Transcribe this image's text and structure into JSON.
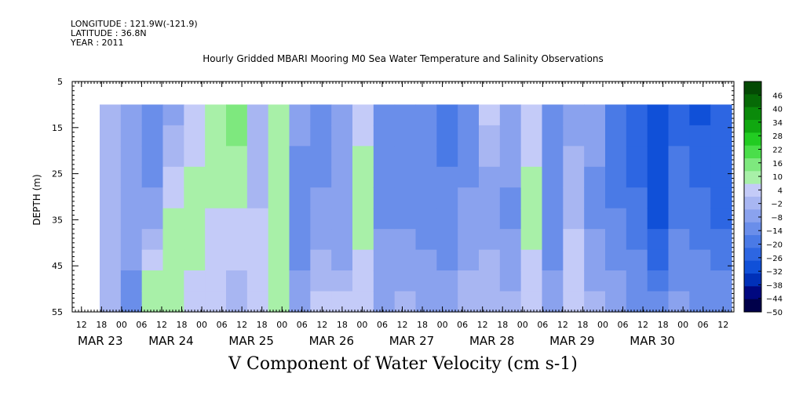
{
  "header": {
    "longitude": "LONGITUDE : 121.9W(-121.9)",
    "latitude": "LATITUDE : 36.8N",
    "year": "YEAR : 2011"
  },
  "chart_data": {
    "type": "heatmap",
    "title": "Hourly Gridded MBARI Mooring M0 Sea Water Temperature and Salinity Observations",
    "ylabel": "DEPTH (m)",
    "xlabel": "V Component of Water Velocity (cm s-1)",
    "ylim": [
      55,
      5
    ],
    "y_ticks": [
      5,
      15,
      25,
      35,
      45,
      55
    ],
    "data_depth_range": [
      10,
      55
    ],
    "x_hour_ticks": [
      "12",
      "18",
      "00",
      "06",
      "12",
      "18",
      "00",
      "06",
      "12",
      "18",
      "00",
      "06",
      "12",
      "18",
      "00",
      "06",
      "12",
      "18",
      "00",
      "06",
      "12",
      "18",
      "00",
      "06",
      "12",
      "18",
      "00",
      "06",
      "12",
      "18",
      "00",
      "06",
      "12"
    ],
    "x_date_labels": [
      "MAR 23",
      "MAR 24",
      "MAR 25",
      "MAR 26",
      "MAR 27",
      "MAR 28",
      "MAR 29",
      "MAR 30"
    ],
    "colorbar": {
      "ticks": [
        46,
        40,
        34,
        28,
        22,
        16,
        10,
        4,
        -2,
        -8,
        -14,
        -20,
        -26,
        -32,
        -38,
        -44,
        -50
      ],
      "range": [
        -50,
        52
      ],
      "colors": [
        "#00004a",
        "#000880",
        "#0030b8",
        "#1050d8",
        "#2d66e2",
        "#4a7ae6",
        "#6a8eea",
        "#8aa2ee",
        "#a8b6f2",
        "#c4cbf8",
        "#a8f0a8",
        "#7ee87e",
        "#4ade4a",
        "#22cc22",
        "#10a810",
        "#0a8a0a",
        "#066a06",
        "#044a04"
      ]
    },
    "series": [
      {
        "values": [
          [
            -4,
            -4,
            -4,
            -3,
            -3,
            -3,
            -2,
            -2,
            -2,
            -2
          ],
          [
            -8,
            -8,
            -9,
            -9,
            -9,
            -10,
            -10,
            -10,
            -11,
            -11
          ],
          [
            -12,
            -12,
            -12,
            -11,
            -10,
            -6,
            0,
            4,
            8,
            10
          ],
          [
            -6,
            -4,
            -2,
            1,
            4,
            8,
            10,
            12,
            12,
            12
          ],
          [
            2,
            4,
            6,
            8,
            10,
            10,
            10,
            8,
            6,
            4
          ],
          [
            10,
            10,
            10,
            9,
            8,
            6,
            4,
            3,
            2,
            2
          ],
          [
            14,
            14,
            12,
            10,
            8,
            6,
            4,
            2,
            0,
            -1
          ],
          [
            -4,
            -3,
            -2,
            -1,
            0,
            1,
            2,
            4,
            6,
            6
          ],
          [
            10,
            12,
            12,
            12,
            12,
            12,
            11,
            10,
            10,
            10
          ],
          [
            -10,
            -10,
            -11,
            -11,
            -11,
            -12,
            -12,
            -11,
            -10,
            -10
          ],
          [
            -12,
            -12,
            -12,
            -11,
            -10,
            -8,
            -6,
            -4,
            -2,
            2
          ],
          [
            -8,
            -8,
            -9,
            -10,
            -10,
            -10,
            -9,
            -8,
            -4,
            2
          ],
          [
            4,
            6,
            8,
            8,
            8,
            8,
            7,
            6,
            4,
            2
          ],
          [
            -14,
            -14,
            -13,
            -12,
            -12,
            -11,
            -10,
            -9,
            -8,
            -6
          ],
          [
            -14,
            -14,
            -14,
            -14,
            -14,
            -12,
            -10,
            -8,
            -6,
            -4
          ],
          [
            -16,
            -16,
            -16,
            -15,
            -14,
            -14,
            -12,
            -10,
            -8,
            -6
          ],
          [
            -18,
            -18,
            -17,
            -16,
            -16,
            -15,
            -14,
            -12,
            -10,
            -10
          ],
          [
            -16,
            -14,
            -12,
            -12,
            -10,
            -10,
            -8,
            -6,
            -4,
            -2
          ],
          [
            2,
            -2,
            -4,
            -6,
            -8,
            -8,
            -6,
            -4,
            -2,
            0
          ],
          [
            -8,
            -8,
            -10,
            -10,
            -12,
            -12,
            -10,
            -8,
            -6,
            -4
          ],
          [
            4,
            4,
            6,
            8,
            10,
            10,
            8,
            6,
            4,
            2
          ],
          [
            -12,
            -12,
            -14,
            -14,
            -16,
            -16,
            -14,
            -12,
            -10,
            -8
          ],
          [
            -8,
            -6,
            -4,
            -4,
            -2,
            0,
            2,
            4,
            4,
            2
          ],
          [
            -10,
            -10,
            -10,
            -11,
            -12,
            -12,
            -10,
            -8,
            -6,
            -4
          ],
          [
            -18,
            -18,
            -18,
            -18,
            -18,
            -16,
            -14,
            -12,
            -10,
            -8
          ],
          [
            -22,
            -22,
            -22,
            -22,
            -20,
            -20,
            -18,
            -16,
            -14,
            -12
          ],
          [
            -32,
            -32,
            -30,
            -30,
            -28,
            -28,
            -26,
            -22,
            -18,
            -14
          ],
          [
            -22,
            -22,
            -20,
            -20,
            -20,
            -18,
            -16,
            -14,
            -12,
            -8
          ],
          [
            -28,
            -26,
            -24,
            -22,
            -20,
            -18,
            -18,
            -16,
            -14,
            -12
          ],
          [
            -24,
            -24,
            -22,
            -22,
            -22,
            -22,
            -20,
            -18,
            -16,
            -14
          ]
        ]
      }
    ]
  }
}
